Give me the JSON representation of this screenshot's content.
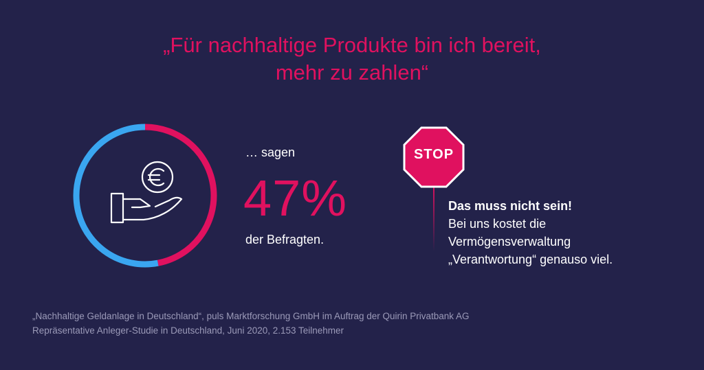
{
  "headline": {
    "line1": "„Für nachhaltige Produkte bin ich bereit,",
    "line2": "mehr zu zahlen“"
  },
  "stat": {
    "lead": "… sagen",
    "value_text": "47%",
    "sub": "der Befragten."
  },
  "stop_sign": {
    "label": "STOP"
  },
  "note": {
    "line1": "Das muss nicht sein!",
    "line2": "Bei uns kostet die",
    "line3": "Vermögensverwaltung",
    "line4": "„Verantwortung“ genauso viel."
  },
  "source": {
    "line1": "„Nachhaltige Geldanlage in Deutschland“, puls Marktforschung GmbH im Auftrag der Quirin Privatbank AG",
    "line2": "Repräsentative Anleger-Studie in Deutschland, Juni 2020, 2.153 Teilnehmer"
  },
  "colors": {
    "background": "#23224a",
    "accent": "#e0115f",
    "secondary": "#3aa6f0",
    "text": "#ffffff"
  },
  "icons": {
    "center": "hand-euro-coin-icon"
  },
  "chart_data": {
    "type": "pie",
    "style": "donut",
    "slices": [
      {
        "value": 47,
        "color": "#e0115f"
      },
      {
        "value": 53,
        "color": "#3aa6f0"
      }
    ],
    "start": "top",
    "direction": "clockwise"
  }
}
